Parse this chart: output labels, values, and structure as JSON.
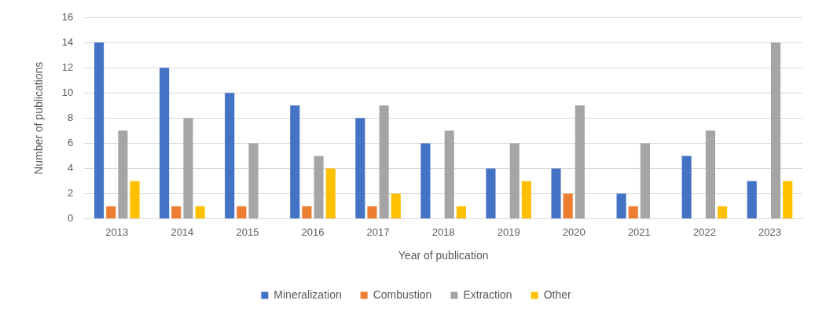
{
  "chart_data": {
    "type": "bar",
    "xlabel": "Year of publication",
    "ylabel": "Number of publications",
    "categories": [
      "2013",
      "2014",
      "2015",
      "2016",
      "2017",
      "2018",
      "2019",
      "2020",
      "2021",
      "2022",
      "2023"
    ],
    "series": [
      {
        "name": "Mineralization",
        "color": "#4472c4",
        "values": [
          14,
          12,
          10,
          9,
          8,
          6,
          4,
          4,
          2,
          5,
          3
        ]
      },
      {
        "name": "Combustion",
        "color": "#ed7d31",
        "values": [
          1,
          1,
          1,
          1,
          1,
          0,
          0,
          2,
          1,
          0,
          0
        ]
      },
      {
        "name": "Extraction",
        "color": "#a5a5a5",
        "values": [
          7,
          8,
          6,
          5,
          9,
          7,
          6,
          9,
          6,
          7,
          14
        ]
      },
      {
        "name": "Other",
        "color": "#ffc000",
        "values": [
          3,
          1,
          0,
          4,
          2,
          1,
          3,
          0,
          0,
          1,
          3
        ]
      }
    ],
    "ylim": [
      0,
      16
    ],
    "yticks": [
      0,
      2,
      4,
      6,
      8,
      10,
      12,
      14,
      16
    ],
    "grid": "y",
    "legend": "bottom"
  }
}
